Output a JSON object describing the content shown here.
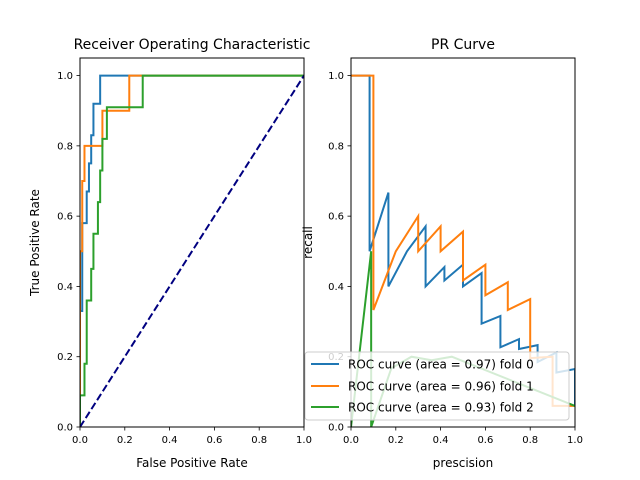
{
  "chart_data": [
    {
      "type": "line",
      "title": "Receiver Operating Characteristic",
      "xlabel": "False Positive Rate",
      "ylabel": "True Positive Rate",
      "xlim": [
        0,
        1
      ],
      "ylim": [
        0,
        1.05
      ],
      "xticks": [
        "0.0",
        "0.2",
        "0.4",
        "0.6",
        "0.8",
        "1.0"
      ],
      "yticks": [
        "0.0",
        "0.2",
        "0.4",
        "0.6",
        "0.8",
        "1.0"
      ],
      "grid": false,
      "series": [
        {
          "name": "ROC curve (area = 0.97) fold 0",
          "color": "#1f77b4",
          "points": [
            [
              0,
              0
            ],
            [
              0,
              0.33
            ],
            [
              0.01,
              0.33
            ],
            [
              0.01,
              0.58
            ],
            [
              0.03,
              0.58
            ],
            [
              0.03,
              0.67
            ],
            [
              0.04,
              0.67
            ],
            [
              0.04,
              0.75
            ],
            [
              0.05,
              0.75
            ],
            [
              0.05,
              0.83
            ],
            [
              0.06,
              0.83
            ],
            [
              0.06,
              0.92
            ],
            [
              0.09,
              0.92
            ],
            [
              0.09,
              1.0
            ],
            [
              1.0,
              1.0
            ]
          ]
        },
        {
          "name": "ROC curve (area = 0.96) fold 1",
          "color": "#ff7f0e",
          "points": [
            [
              0,
              0
            ],
            [
              0,
              0.5
            ],
            [
              0.01,
              0.5
            ],
            [
              0.01,
              0.7
            ],
            [
              0.02,
              0.7
            ],
            [
              0.02,
              0.8
            ],
            [
              0.1,
              0.8
            ],
            [
              0.1,
              0.9
            ],
            [
              0.22,
              0.9
            ],
            [
              0.22,
              1.0
            ],
            [
              1.0,
              1.0
            ]
          ]
        },
        {
          "name": "ROC curve (area = 0.93) fold 2",
          "color": "#2ca02c",
          "points": [
            [
              0,
              0
            ],
            [
              0,
              0.09
            ],
            [
              0.02,
              0.09
            ],
            [
              0.02,
              0.18
            ],
            [
              0.03,
              0.18
            ],
            [
              0.03,
              0.36
            ],
            [
              0.05,
              0.36
            ],
            [
              0.05,
              0.45
            ],
            [
              0.06,
              0.45
            ],
            [
              0.06,
              0.55
            ],
            [
              0.08,
              0.55
            ],
            [
              0.08,
              0.64
            ],
            [
              0.09,
              0.64
            ],
            [
              0.09,
              0.73
            ],
            [
              0.1,
              0.73
            ],
            [
              0.1,
              0.82
            ],
            [
              0.12,
              0.82
            ],
            [
              0.12,
              0.91
            ],
            [
              0.28,
              0.91
            ],
            [
              0.28,
              1.0
            ],
            [
              1.0,
              1.0
            ]
          ]
        },
        {
          "name": "",
          "color": "#000080",
          "dashed": true,
          "points": [
            [
              0,
              0
            ],
            [
              1,
              1
            ]
          ]
        }
      ]
    },
    {
      "type": "line",
      "title": "PR Curve",
      "xlabel": "prescision",
      "ylabel": "recall",
      "xlim": [
        0,
        1
      ],
      "ylim": [
        0,
        1.05
      ],
      "xticks": [
        "0.0",
        "0.2",
        "0.4",
        "0.6",
        "0.8",
        "1.0"
      ],
      "yticks": [
        "0.0",
        "0.2",
        "0.4",
        "0.6",
        "0.8",
        "1.0"
      ],
      "grid": false,
      "series": [
        {
          "name": "ROC curve (area = 0.97) fold 0",
          "color": "#1f77b4",
          "points": [
            [
              0,
              1.0
            ],
            [
              0.083,
              1.0
            ],
            [
              0.083,
              0.5
            ],
            [
              0.167,
              0.667
            ],
            [
              0.167,
              0.4
            ],
            [
              0.25,
              0.5
            ],
            [
              0.333,
              0.571
            ],
            [
              0.333,
              0.4
            ],
            [
              0.417,
              0.455
            ],
            [
              0.417,
              0.417
            ],
            [
              0.5,
              0.462
            ],
            [
              0.5,
              0.4
            ],
            [
              0.583,
              0.438
            ],
            [
              0.583,
              0.294
            ],
            [
              0.667,
              0.316
            ],
            [
              0.667,
              0.227
            ],
            [
              0.75,
              0.25
            ],
            [
              0.75,
              0.222
            ],
            [
              0.833,
              0.233
            ],
            [
              0.833,
              0.185
            ],
            [
              0.917,
              0.212
            ],
            [
              0.917,
              0.155
            ],
            [
              1.0,
              0.165
            ],
            [
              1.0,
              0.06
            ]
          ]
        },
        {
          "name": "ROC curve (area = 0.96) fold 1",
          "color": "#ff7f0e",
          "points": [
            [
              0,
              1.0
            ],
            [
              0.1,
              1.0
            ],
            [
              0.1,
              0.333
            ],
            [
              0.2,
              0.5
            ],
            [
              0.3,
              0.6
            ],
            [
              0.3,
              0.5
            ],
            [
              0.4,
              0.571
            ],
            [
              0.4,
              0.5
            ],
            [
              0.5,
              0.556
            ],
            [
              0.5,
              0.417
            ],
            [
              0.6,
              0.462
            ],
            [
              0.6,
              0.375
            ],
            [
              0.7,
              0.412
            ],
            [
              0.7,
              0.333
            ],
            [
              0.8,
              0.364
            ],
            [
              0.8,
              0.196
            ],
            [
              0.9,
              0.2
            ],
            [
              0.9,
              0.06
            ],
            [
              1.0,
              0.06
            ]
          ]
        },
        {
          "name": "ROC curve (area = 0.93) fold 2",
          "color": "#2ca02c",
          "points": [
            [
              0,
              0.0
            ],
            [
              0.09,
              0.5
            ],
            [
              0.09,
              0.0
            ],
            [
              0.18,
              0.167
            ],
            [
              0.27,
              0.2
            ],
            [
              0.36,
              0.19
            ],
            [
              0.45,
              0.2
            ],
            [
              1.0,
              0.06
            ]
          ]
        }
      ]
    }
  ],
  "legend": {
    "location": "lower-right",
    "entries": [
      "ROC curve (area = 0.97) fold 0",
      "ROC curve (area = 0.96) fold 1",
      "ROC curve (area = 0.93) fold 2"
    ]
  }
}
